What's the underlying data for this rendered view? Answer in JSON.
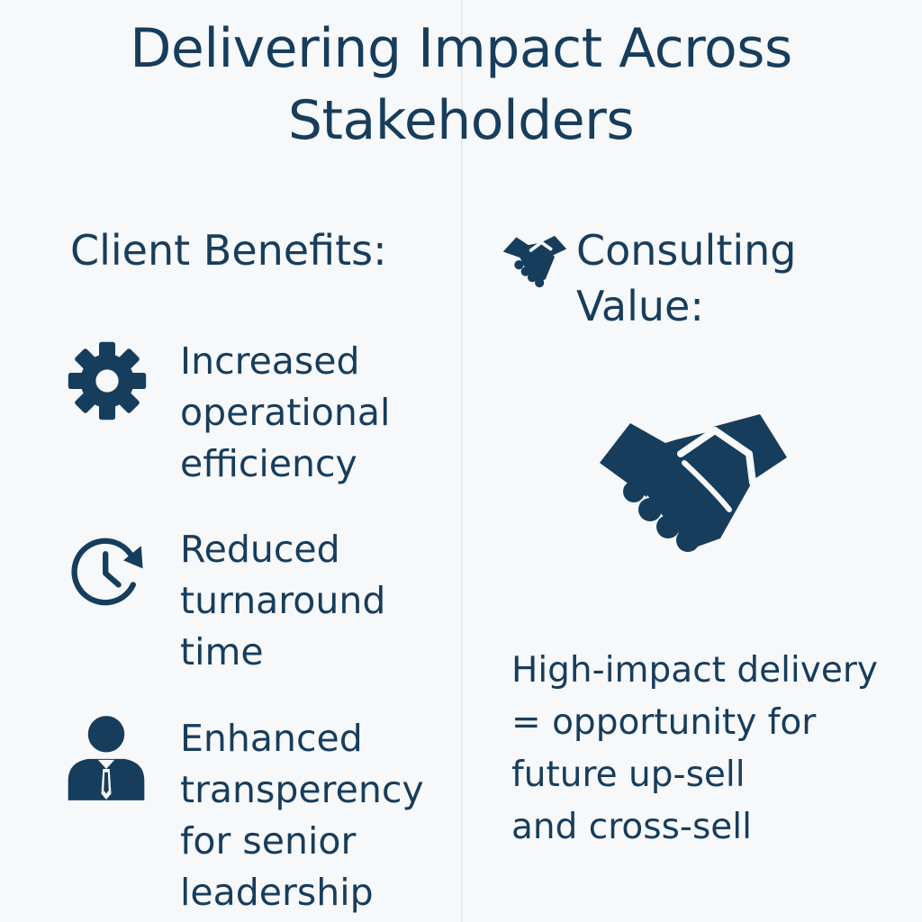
{
  "title": {
    "line1": "Delivering Impact Across",
    "line2": "Stakeholders"
  },
  "client": {
    "heading": "Client Benefits:",
    "items": [
      {
        "icon": "gear-icon",
        "lines": [
          "Increased",
          "operational",
          "efficiency"
        ]
      },
      {
        "icon": "clock-arrow-icon",
        "lines": [
          "Reduced",
          "turnaround",
          "time"
        ]
      },
      {
        "icon": "businessman-icon",
        "lines": [
          "Enhanced",
          "transperency",
          "for senior",
          "leadership"
        ]
      }
    ]
  },
  "consulting": {
    "heading_lines": [
      "Consulting",
      "Value:"
    ],
    "heading_icon": "handshake-icon",
    "illustration_icon": "handshake-icon",
    "lines": [
      "High-impact delivery",
      "= opportunity for",
      "future up-sell",
      "and cross-sell"
    ]
  },
  "colors": {
    "primary": "#173d5c",
    "background": "#f7f8fa",
    "divider": "#e6eaef"
  }
}
